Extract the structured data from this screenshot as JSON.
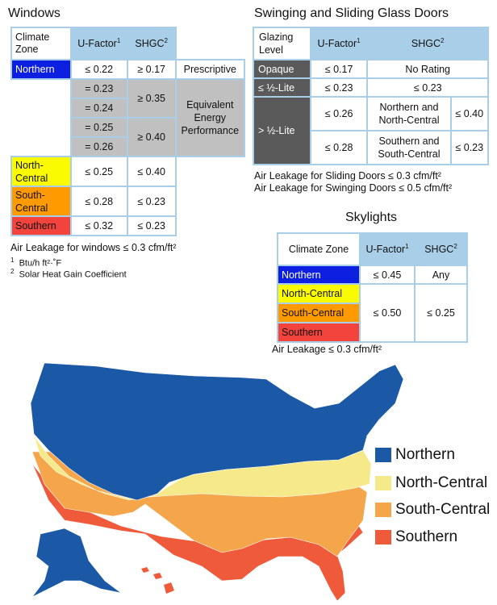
{
  "windows": {
    "title": "Windows",
    "headers": [
      "Climate Zone",
      "U-Factor",
      "SHGC"
    ],
    "sup": [
      "1",
      "2"
    ],
    "rows": [
      {
        "zone": "Northern",
        "u": "≤ 0.22",
        "shgc": "≥ 0.17",
        "path": "Prescriptive"
      },
      {
        "u": "= 0.23"
      },
      {
        "u": "= 0.24"
      },
      {
        "u": "= 0.25"
      },
      {
        "u": "= 0.26"
      },
      {
        "zone": "North-Central",
        "u": "≤ 0.25",
        "shgc": "≤ 0.40"
      },
      {
        "zone": "South-Central",
        "u": "≤ 0.28",
        "shgc": "≤ 0.23"
      },
      {
        "zone": "Southern",
        "u": "≤ 0.32",
        "shgc": "≤ 0.23"
      }
    ],
    "shgc_035": "≥ 0.35",
    "shgc_040": "≥ 0.40",
    "equivalent": "Equivalent Energy Performance",
    "air_leakage": "Air Leakage for windows ≤ 0.3 cfm/ft²",
    "footnote1": "Btu/h ft²·˚F",
    "footnote2": "Solar Heat Gain Coefficient"
  },
  "doors": {
    "title": "Swinging and Sliding Glass Doors",
    "headers": [
      "Glazing Level",
      "U-Factor",
      "SHGC"
    ],
    "opaque": {
      "level": "Opaque",
      "u": "≤ 0.17",
      "shgc": "No Rating"
    },
    "half": {
      "level": "≤ ½-Lite",
      "u": "≤ 0.23",
      "shgc": "≤ 0.23"
    },
    "more": {
      "level": "> ½-Lite",
      "r1": {
        "u": "≤ 0.26",
        "zone": "Northern and North-Central",
        "shgc": "≤ 0.40"
      },
      "r2": {
        "u": "≤ 0.28",
        "zone": "Southern and South-Central",
        "shgc": "≤ 0.23"
      }
    },
    "air1": "Air Leakage for Sliding Doors ≤ 0.3 cfm/ft²",
    "air2": "Air Leakage for Swinging Doors ≤ 0.5 cfm/ft²"
  },
  "skylights": {
    "title": "Skylights",
    "headers": [
      "Climate Zone",
      "U-Factor",
      "SHGC"
    ],
    "rows": [
      {
        "zone": "Northern",
        "u": "≤ 0.45",
        "shgc": "Any"
      },
      {
        "zone": "North-Central"
      },
      {
        "zone": "South-Central",
        "u": "≤ 0.50",
        "shgc": "≤ 0.25"
      },
      {
        "zone": "Southern"
      }
    ],
    "air": "Air Leakage ≤ 0.3 cfm/ft²"
  },
  "map": {
    "legend": [
      {
        "label": "Northern",
        "color": "#1b59a6"
      },
      {
        "label": "North-Central",
        "color": "#f5e98a"
      },
      {
        "label": "South-Central",
        "color": "#f5a54a"
      },
      {
        "label": "Southern",
        "color": "#ef5a3a"
      }
    ]
  }
}
